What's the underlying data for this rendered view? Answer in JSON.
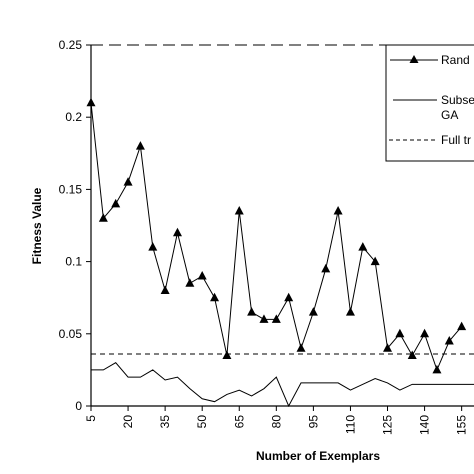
{
  "chart_data": {
    "type": "line",
    "xlabel": "Number of Exemplars",
    "ylabel": "Fitness Value",
    "xlim": [
      5,
      160
    ],
    "ylim": [
      0,
      0.25
    ],
    "yticks": [
      0,
      0.05,
      0.1,
      0.15,
      0.2,
      0.25
    ],
    "ytick_labels": [
      "0",
      "0.05",
      "0.1",
      "0.15",
      "0.2",
      "0.25"
    ],
    "xticks": [
      5,
      20,
      35,
      50,
      65,
      80,
      95,
      110,
      125,
      140,
      155
    ],
    "xtick_labels": [
      "5",
      "20",
      "35",
      "50",
      "65",
      "80",
      "95",
      "110",
      "125",
      "140",
      "155"
    ],
    "legend_position": "top-right",
    "series": [
      {
        "name": "Rand",
        "style": "line-triangle",
        "x": [
          5,
          10,
          15,
          20,
          25,
          30,
          35,
          40,
          45,
          50,
          55,
          60,
          65,
          70,
          75,
          80,
          85,
          90,
          95,
          100,
          105,
          110,
          115,
          120,
          125,
          130,
          135,
          140,
          145,
          150,
          155
        ],
        "y": [
          0.21,
          0.13,
          0.14,
          0.155,
          0.18,
          0.11,
          0.08,
          0.12,
          0.085,
          0.09,
          0.075,
          0.035,
          0.135,
          0.065,
          0.06,
          0.06,
          0.075,
          0.04,
          0.065,
          0.095,
          0.135,
          0.065,
          0.11,
          0.1,
          0.04,
          0.05,
          0.035,
          0.05,
          0.025,
          0.045,
          0.055
        ]
      },
      {
        "name": "Subse GA",
        "style": "solid",
        "x": [
          5,
          10,
          15,
          20,
          25,
          30,
          35,
          40,
          45,
          50,
          55,
          60,
          65,
          70,
          75,
          80,
          85,
          90,
          95,
          100,
          105,
          110,
          115,
          120,
          125,
          130,
          135,
          140,
          145,
          150,
          155,
          160
        ],
        "y": [
          0.025,
          0.025,
          0.03,
          0.02,
          0.02,
          0.025,
          0.018,
          0.02,
          0.012,
          0.005,
          0.003,
          0.008,
          0.011,
          0.007,
          0.012,
          0.02,
          0.0,
          0.016,
          0.016,
          0.016,
          0.016,
          0.011,
          0.015,
          0.019,
          0.016,
          0.011,
          0.015,
          0.015,
          0.015,
          0.015,
          0.015,
          0.015
        ]
      },
      {
        "name": "Full tr",
        "style": "short-dash",
        "x": [
          5,
          160
        ],
        "y": [
          0.036,
          0.036
        ]
      },
      {
        "style": "long-dash",
        "x": [
          5,
          160
        ],
        "y": [
          0.25,
          0.25
        ]
      }
    ]
  },
  "legend": {
    "items": [
      {
        "label": "Rand",
        "style": "line-triangle"
      },
      {
        "label": "Subse",
        "label2": "GA",
        "style": "solid"
      },
      {
        "label": "Full tr",
        "style": "short-dash"
      }
    ]
  }
}
